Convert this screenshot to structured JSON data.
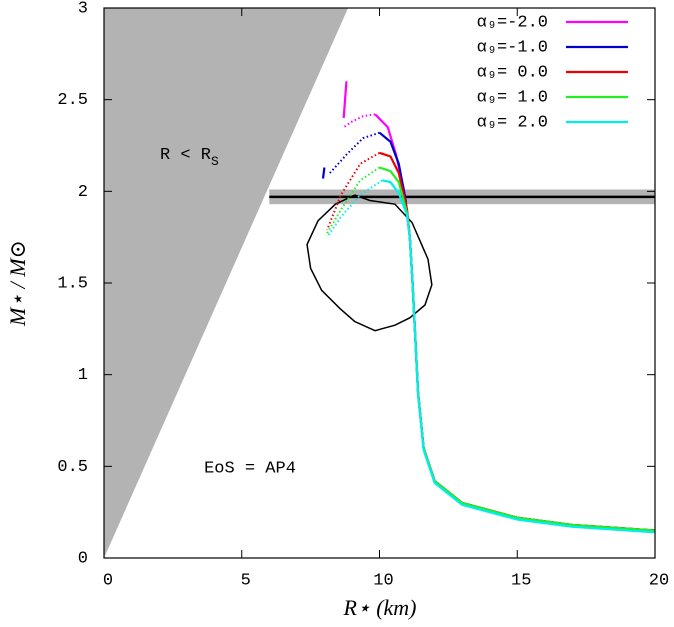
{
  "chart_data": {
    "type": "line",
    "xlabel": "R⋆ (km)",
    "ylabel": "M⋆ / M⊙",
    "xlim": [
      0,
      20
    ],
    "ylim": [
      0,
      3
    ],
    "xticks": [
      0,
      5,
      10,
      15,
      20
    ],
    "yticks": [
      0,
      0.5,
      1,
      1.5,
      2,
      2.5,
      3
    ],
    "legend": "upper right",
    "annotation": "EoS = AP4",
    "excluded_region": {
      "label": "R < R",
      "label_subscript": "S",
      "color": "#b3b3b3",
      "x": [
        0,
        8.86
      ],
      "values": [
        0,
        3
      ]
    },
    "band": {
      "xlim": [
        6,
        20
      ],
      "center": 1.97,
      "error": 0.04,
      "color": "#b3b3b3"
    },
    "contour": {
      "color": "#000000",
      "x": [
        9.1,
        9.65,
        10.56,
        11.18,
        11.47,
        11.76,
        11.9,
        11.65,
        11.1,
        10.56,
        9.84,
        9.1,
        8.57,
        7.9,
        7.5,
        7.37,
        7.77,
        8.4,
        9.1
      ],
      "values": [
        1.98,
        1.95,
        1.93,
        1.83,
        1.73,
        1.63,
        1.49,
        1.38,
        1.31,
        1.27,
        1.24,
        1.29,
        1.36,
        1.46,
        1.58,
        1.71,
        1.84,
        1.93,
        1.98
      ]
    },
    "series": [
      {
        "name": "α₉=-2.0",
        "color": "#ff00ff",
        "x": [
          20,
          17,
          15,
          13,
          12,
          11.6,
          11.4,
          11.3,
          11.2,
          11.1,
          10.9,
          10.6,
          10.3,
          9.84,
          null,
          8.7,
          8.8
        ],
        "values": [
          0.15,
          0.18,
          0.22,
          0.3,
          0.42,
          0.6,
          0.9,
          1.2,
          1.5,
          1.75,
          2.0,
          2.2,
          2.35,
          2.42,
          null,
          2.4,
          2.6
        ],
        "dotted_x": [
          9.84,
          9.4,
          9.0,
          8.7
        ],
        "dotted_values": [
          2.42,
          2.41,
          2.38,
          2.35
        ]
      },
      {
        "name": "α₉=-1.0",
        "color": "#0000cc",
        "x": [
          20,
          17,
          15,
          13,
          12,
          11.6,
          11.4,
          11.3,
          11.2,
          11.1,
          10.95,
          10.7,
          10.4,
          10.0,
          null,
          7.95,
          8.0
        ],
        "values": [
          0.15,
          0.18,
          0.22,
          0.3,
          0.42,
          0.6,
          0.9,
          1.2,
          1.5,
          1.75,
          1.95,
          2.15,
          2.27,
          2.32,
          null,
          2.07,
          2.13
        ],
        "dotted_x": [
          10.0,
          9.4,
          8.8,
          8.2
        ],
        "dotted_values": [
          2.32,
          2.29,
          2.2,
          2.1
        ]
      },
      {
        "name": "α₉= 0.0",
        "color": "#ee0000",
        "x": [
          20,
          17,
          15,
          13,
          12,
          11.6,
          11.4,
          11.3,
          11.2,
          11.1,
          11.0,
          10.7,
          10.4,
          10.0
        ],
        "values": [
          0.15,
          0.18,
          0.22,
          0.3,
          0.42,
          0.6,
          0.9,
          1.2,
          1.5,
          1.75,
          1.9,
          2.1,
          2.19,
          2.21
        ],
        "dotted_x": [
          10.0,
          9.3,
          8.6,
          8.1
        ],
        "dotted_values": [
          2.21,
          2.15,
          1.98,
          1.79
        ]
      },
      {
        "name": "α₉= 1.0",
        "color": "#22ee22",
        "x": [
          20,
          17,
          15,
          13,
          12,
          11.6,
          11.4,
          11.3,
          11.2,
          11.1,
          11.0,
          10.7,
          10.4,
          10.0
        ],
        "values": [
          0.15,
          0.18,
          0.22,
          0.3,
          0.42,
          0.6,
          0.9,
          1.2,
          1.5,
          1.75,
          1.88,
          2.05,
          2.11,
          2.13
        ],
        "dotted_x": [
          10.0,
          9.3,
          8.6,
          8.05
        ],
        "dotted_values": [
          2.13,
          2.06,
          1.9,
          1.76
        ]
      },
      {
        "name": "α₉= 2.0",
        "color": "#00eeee",
        "x": [
          20,
          17,
          15,
          13,
          12,
          11.6,
          11.4,
          11.3,
          11.2,
          11.1,
          11.0,
          10.7,
          10.4,
          10.1
        ],
        "values": [
          0.14,
          0.17,
          0.21,
          0.29,
          0.41,
          0.59,
          0.89,
          1.2,
          1.5,
          1.75,
          1.87,
          1.99,
          2.05,
          2.06
        ],
        "dotted_x": [
          10.1,
          9.3,
          8.6,
          8.1
        ],
        "dotted_values": [
          2.06,
          1.98,
          1.86,
          1.75
        ]
      }
    ]
  }
}
